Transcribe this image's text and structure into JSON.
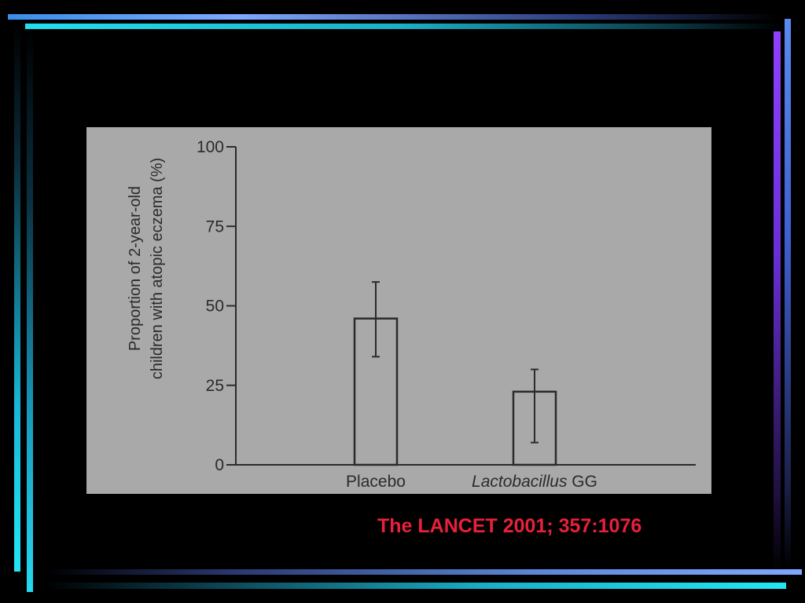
{
  "citation": "The LANCET 2001; 357:1076",
  "colors": {
    "background": "#000000",
    "citation": "#e8203a",
    "figure_background": "#a9a9a9",
    "ink": "#2b2b2b"
  },
  "chart_data": {
    "type": "bar",
    "categories": [
      "Placebo",
      "Lactobacillus GG"
    ],
    "category_labels": [
      {
        "italic": "",
        "plain": "Placebo"
      },
      {
        "italic": "Lactobacillus",
        "plain": " GG"
      }
    ],
    "values": [
      46,
      23
    ],
    "error_bars": [
      {
        "low": 34,
        "high": 57.5
      },
      {
        "low": 7,
        "high": 30
      }
    ],
    "ylabel": [
      "Proportion of 2-year-old",
      "children with atopic eczema (%)"
    ],
    "ylim": [
      0,
      100
    ],
    "yticks": [
      0,
      25,
      50,
      75,
      100
    ],
    "grid": false,
    "legend": "none"
  }
}
